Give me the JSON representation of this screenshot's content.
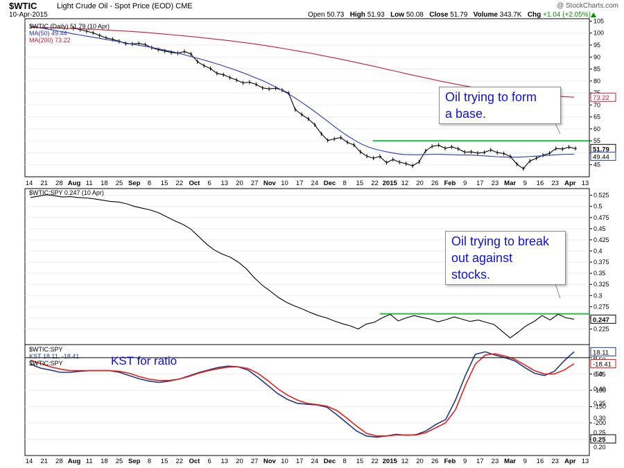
{
  "header": {
    "symbol": "$WTIC",
    "name": "Light Crude Oil - Spot Price (EOD) CME",
    "date": "10-Apr-2015",
    "copyright": "@ StockCharts.com",
    "open_label": "Open",
    "open": "50.73",
    "high_label": "High",
    "high": "51.93",
    "low_label": "Low",
    "low": "50.08",
    "close_label": "Close",
    "close": "51.79",
    "volume_label": "Volume",
    "volume": "343.7K",
    "chg_label": "Chg",
    "chg": "+1.04 (+2.05%)"
  },
  "colors": {
    "price": "#000000",
    "ma50": "#2b3aa8",
    "ma200": "#c0203a",
    "support": "#22bb44",
    "kst": "#1f3a7a",
    "kst_signal": "#e02020",
    "annotation": "#1111cc"
  },
  "annotations": {
    "panel1": [
      "Oil trying to form",
      "a base."
    ],
    "panel2": [
      "Oil trying to break",
      "out against",
      "stocks."
    ],
    "panel3": "KST for ratio"
  },
  "legends": {
    "panel1": [
      "$WTIC (Daily) 51.79 (10 Apr)",
      "MA(50) 49.44",
      "MA(200) 73.22"
    ],
    "panel2": [
      "$WTIC:SPY 0.247 (10 Apr)"
    ],
    "panel3": [
      "$WTIC:SPY",
      "KST 18.11, -18.41",
      "$WTIC:SPY"
    ]
  },
  "x_axis_labels": [
    "14",
    "21",
    "28",
    "Aug",
    "11",
    "18",
    "25",
    "Sep",
    "8",
    "15",
    "22",
    "Oct",
    "6",
    "13",
    "20",
    "27",
    "Nov",
    "10",
    "17",
    "24",
    "Dec",
    "8",
    "15",
    "22",
    "2015",
    "12",
    "20",
    "26",
    "Feb",
    "9",
    "17",
    "23",
    "Mar",
    "9",
    "16",
    "23",
    "Apr",
    "13"
  ],
  "chart_data": [
    {
      "type": "line",
      "title": "$WTIC Light Crude Oil - Spot Price (EOD)",
      "ylim": [
        40,
        106
      ],
      "y_ticks": [
        45,
        50,
        55,
        60,
        65,
        70,
        75,
        80,
        85,
        90,
        95,
        100,
        105
      ],
      "value_tags": [
        "73.22",
        "51.79",
        "49.44"
      ],
      "support_level": 55,
      "series": [
        {
          "name": "$WTIC (Daily)",
          "values": [
            102,
            101.5,
            100.8,
            100.1,
            99,
            98,
            97.4,
            96.6,
            95.6,
            95.5,
            95.7,
            95.2,
            93.9,
            93.1,
            92.5,
            91.9,
            91.6,
            92.3,
            91.3,
            88.1,
            86.4,
            85.2,
            83.2,
            82.6,
            81.4,
            80.4,
            79.2,
            79.5,
            78.6,
            77.1,
            76.7,
            77,
            76.2,
            74.9,
            68.1,
            66,
            64.2,
            61.7,
            58,
            55.2,
            55.8,
            56.4,
            54.4,
            53.3,
            50.4,
            48.6,
            47.8,
            48.5,
            45.9,
            47.2,
            46.1,
            45.5,
            44.6,
            46.2,
            50.8,
            52.7,
            53.2,
            51.9,
            52.5,
            51.7,
            50.3,
            50.4,
            49.9,
            50.2,
            51.2,
            50.1,
            49.7,
            48.5,
            45.3,
            43.4,
            46.6,
            47.8,
            49,
            49.8,
            51.8,
            51.6,
            52.4,
            51.79
          ]
        },
        {
          "name": "MA(50)",
          "values": [
            103,
            102.4,
            101.9,
            101.4,
            100.8,
            100.3,
            99.7,
            99.2,
            98.7,
            98.2,
            97.7,
            97.2,
            96.7,
            96.2,
            95.6,
            95.1,
            94.6,
            94.1,
            93.5,
            92.9,
            92.3,
            91.6,
            90.8,
            90,
            89.2,
            88.4,
            87.5,
            86.6,
            85.6,
            84.6,
            83.5,
            82.4,
            81.2,
            80,
            78.6,
            77.1,
            75.5,
            73.8,
            71.9,
            69.9,
            67.8,
            65.6,
            63.4,
            61.1,
            58.9,
            56.9,
            55.1,
            53.5,
            52.3,
            51.4,
            50.7,
            50.1,
            49.6,
            49.3,
            49.2,
            49.2,
            49.3,
            49.4,
            49.4,
            49.3,
            49.2,
            49.1,
            49.1,
            49,
            48.8,
            48.6,
            48.4,
            48.3,
            48.2,
            48.2,
            48.3,
            48.5,
            48.7,
            48.9,
            49.1,
            49.3,
            49.4,
            49.44
          ]
        },
        {
          "name": "MA(200)",
          "values": [
            102.4,
            102.3,
            102.2,
            102,
            101.9,
            101.7,
            101.5,
            101.2,
            101,
            100.7,
            100.4,
            100,
            99.6,
            99.2,
            98.8,
            98.3,
            97.8,
            97.3,
            96.8,
            96.2,
            95.6,
            94.9,
            94.2,
            93.4,
            92.6,
            91.8,
            90.9,
            90,
            89.1,
            88.1,
            87.1,
            86.1,
            85,
            84,
            82.9,
            81.9,
            80.9,
            79.9,
            79,
            78.1,
            77.3,
            76.6,
            76,
            75.5,
            75,
            74.6,
            74.2,
            73.8,
            73.5,
            73.22
          ]
        }
      ]
    },
    {
      "type": "line",
      "title": "$WTIC:SPY",
      "ylim": [
        0.19,
        0.54
      ],
      "y_ticks": [
        0.225,
        0.25,
        0.275,
        0.3,
        0.325,
        0.35,
        0.375,
        0.4,
        0.425,
        0.45,
        0.475,
        0.5,
        0.525
      ],
      "value_tags": [
        "0.247"
      ],
      "support_level": 0.259,
      "series": [
        {
          "name": "$WTIC:SPY",
          "values": [
            0.52,
            0.523,
            0.526,
            0.524,
            0.521,
            0.522,
            0.52,
            0.519,
            0.517,
            0.514,
            0.511,
            0.51,
            0.506,
            0.5,
            0.496,
            0.492,
            0.486,
            0.477,
            0.468,
            0.46,
            0.45,
            0.433,
            0.416,
            0.402,
            0.393,
            0.386,
            0.375,
            0.36,
            0.34,
            0.323,
            0.31,
            0.296,
            0.285,
            0.277,
            0.27,
            0.262,
            0.255,
            0.25,
            0.243,
            0.237,
            0.232,
            0.225,
            0.236,
            0.24,
            0.25,
            0.258,
            0.243,
            0.25,
            0.255,
            0.251,
            0.247,
            0.241,
            0.246,
            0.252,
            0.247,
            0.242,
            0.245,
            0.24,
            0.235,
            0.22,
            0.205,
            0.218,
            0.232,
            0.242,
            0.255,
            0.245,
            0.258,
            0.25,
            0.247
          ]
        }
      ]
    },
    {
      "type": "line",
      "title": "KST for ratio",
      "ylim": [
        -300,
        40
      ],
      "y_ticks": [
        0,
        -50,
        -100,
        -150,
        -200,
        -250
      ],
      "y_ticks_right": [
        0.5,
        0.45,
        0.4,
        0.35,
        0.3,
        0.25,
        0.2
      ],
      "value_tags": [
        "18.11",
        "-18.41",
        "0.25"
      ],
      "series": [
        {
          "name": "KST",
          "values": [
            -20,
            -32,
            -38,
            -45,
            -45,
            -42,
            -40,
            -40,
            -40,
            -45,
            -55,
            -65,
            -72,
            -76,
            -72,
            -66,
            -56,
            -46,
            -38,
            -30,
            -26,
            -28,
            -38,
            -60,
            -85,
            -110,
            -128,
            -140,
            -143,
            -145,
            -152,
            -175,
            -200,
            -225,
            -240,
            -244,
            -240,
            -235,
            -238,
            -236,
            -225,
            -205,
            -190,
            -130,
            -55,
            10,
            18,
            8,
            0,
            -10,
            -30,
            -48,
            -55,
            -42,
            -10,
            18.11
          ]
        },
        {
          "name": "KST signal",
          "values": [
            -8,
            -18,
            -28,
            -35,
            -40,
            -40,
            -40,
            -40,
            -40,
            -42,
            -48,
            -58,
            -66,
            -70,
            -70,
            -66,
            -58,
            -48,
            -40,
            -34,
            -29,
            -28,
            -33,
            -48,
            -70,
            -95,
            -115,
            -130,
            -140,
            -144,
            -149,
            -162,
            -185,
            -210,
            -232,
            -240,
            -240,
            -237,
            -237,
            -237,
            -230,
            -215,
            -200,
            -160,
            -85,
            -20,
            8,
            12,
            5,
            -5,
            -22,
            -40,
            -50,
            -50,
            -38,
            -18.41
          ]
        }
      ]
    }
  ]
}
